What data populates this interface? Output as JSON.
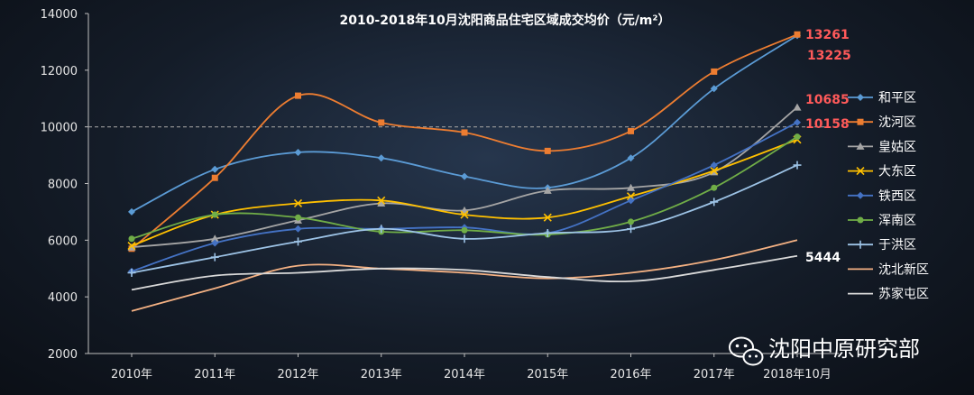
{
  "chart_data": {
    "type": "line",
    "title": "2010-2018年10月沈阳商品住宅区域成交均价（元/m²）",
    "xlabel": "",
    "ylabel": "",
    "categories": [
      "2010年",
      "2011年",
      "2012年",
      "2013年",
      "2014年",
      "2015年",
      "2016年",
      "2017年",
      "2018年10月"
    ],
    "ylim": [
      2000,
      14000
    ],
    "yticks": [
      "2000",
      "4000",
      "6000",
      "8000",
      "10000",
      "12000",
      "14000"
    ],
    "grid": false,
    "legend_position": "right",
    "reference_line": 10000,
    "series": [
      {
        "name": "和平区",
        "color": "#5b9bd5",
        "marker": "diamond",
        "values": [
          7000,
          8500,
          9100,
          8900,
          8250,
          7850,
          8900,
          11350,
          13225
        ]
      },
      {
        "name": "沈河区",
        "color": "#ed7d31",
        "marker": "square",
        "values": [
          5700,
          8200,
          11100,
          10150,
          9800,
          9150,
          9850,
          11950,
          13261
        ]
      },
      {
        "name": "皇姑区",
        "color": "#a5a5a5",
        "marker": "triangle",
        "values": [
          5750,
          6050,
          6700,
          7300,
          7050,
          7750,
          7850,
          8400,
          10685
        ]
      },
      {
        "name": "大东区",
        "color": "#ffc000",
        "marker": "x",
        "values": [
          5800,
          6900,
          7300,
          7400,
          6900,
          6800,
          7550,
          8450,
          9550
        ]
      },
      {
        "name": "铁西区",
        "color": "#4472c4",
        "marker": "diamond",
        "values": [
          4900,
          5900,
          6400,
          6400,
          6450,
          6250,
          7400,
          8650,
          10158
        ]
      },
      {
        "name": "浑南区",
        "color": "#70ad47",
        "marker": "circle",
        "values": [
          6050,
          6900,
          6800,
          6300,
          6350,
          6200,
          6650,
          7850,
          9650
        ]
      },
      {
        "name": "于洪区",
        "color": "#9dc3e6",
        "marker": "plus",
        "values": [
          4850,
          5400,
          5950,
          6400,
          6050,
          6250,
          6400,
          7350,
          8650
        ]
      },
      {
        "name": "沈北新区",
        "color": "#f4b183",
        "marker": "none",
        "values": [
          3500,
          4300,
          5100,
          5000,
          4850,
          4650,
          4850,
          5300,
          6000
        ]
      },
      {
        "name": "苏家屯区",
        "color": "#d9d9d9",
        "marker": "none",
        "values": [
          4250,
          4750,
          4850,
          5000,
          4950,
          4700,
          4550,
          4950,
          5444
        ]
      }
    ],
    "annotations": [
      {
        "text": "13261",
        "color": "#ff5a5a"
      },
      {
        "text": "13225",
        "color": "#ff5a5a"
      },
      {
        "text": "10685",
        "color": "#ff5a5a"
      },
      {
        "text": "10158",
        "color": "#ff5a5a"
      },
      {
        "text": "5444",
        "color": "#ffffff"
      }
    ]
  },
  "watermark": {
    "icon": "wechat-icon",
    "text": "沈阳中原研究部"
  }
}
